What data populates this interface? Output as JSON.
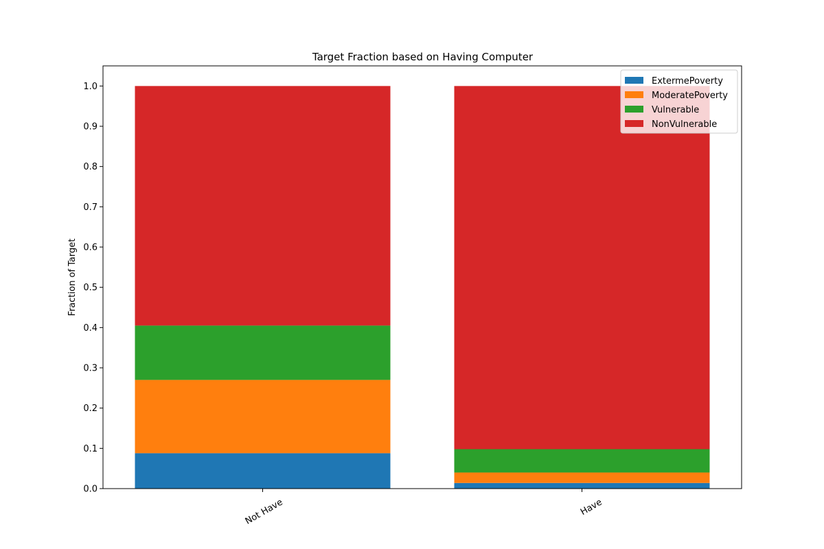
{
  "chart_data": {
    "type": "bar",
    "stacked": true,
    "title": "Target Fraction based on Having Computer",
    "xlabel": "",
    "ylabel": "Fraction of Target",
    "categories": [
      "Not Have",
      "Have"
    ],
    "series": [
      {
        "name": "ExtermePoverty",
        "color": "#1f77b4",
        "values": [
          0.088,
          0.014
        ]
      },
      {
        "name": "ModeratePoverty",
        "color": "#ff7f0e",
        "values": [
          0.182,
          0.026
        ]
      },
      {
        "name": "Vulnerable",
        "color": "#2ca02c",
        "values": [
          0.135,
          0.058
        ]
      },
      {
        "name": "NonVulnerable",
        "color": "#d62728",
        "values": [
          0.595,
          0.902
        ]
      }
    ],
    "ylim": [
      0,
      1.05
    ],
    "yticks": [
      "0.0",
      "0.1",
      "0.2",
      "0.3",
      "0.4",
      "0.5",
      "0.6",
      "0.7",
      "0.8",
      "0.9",
      "1.0"
    ],
    "legend_position": "top-right",
    "grid": false
  }
}
